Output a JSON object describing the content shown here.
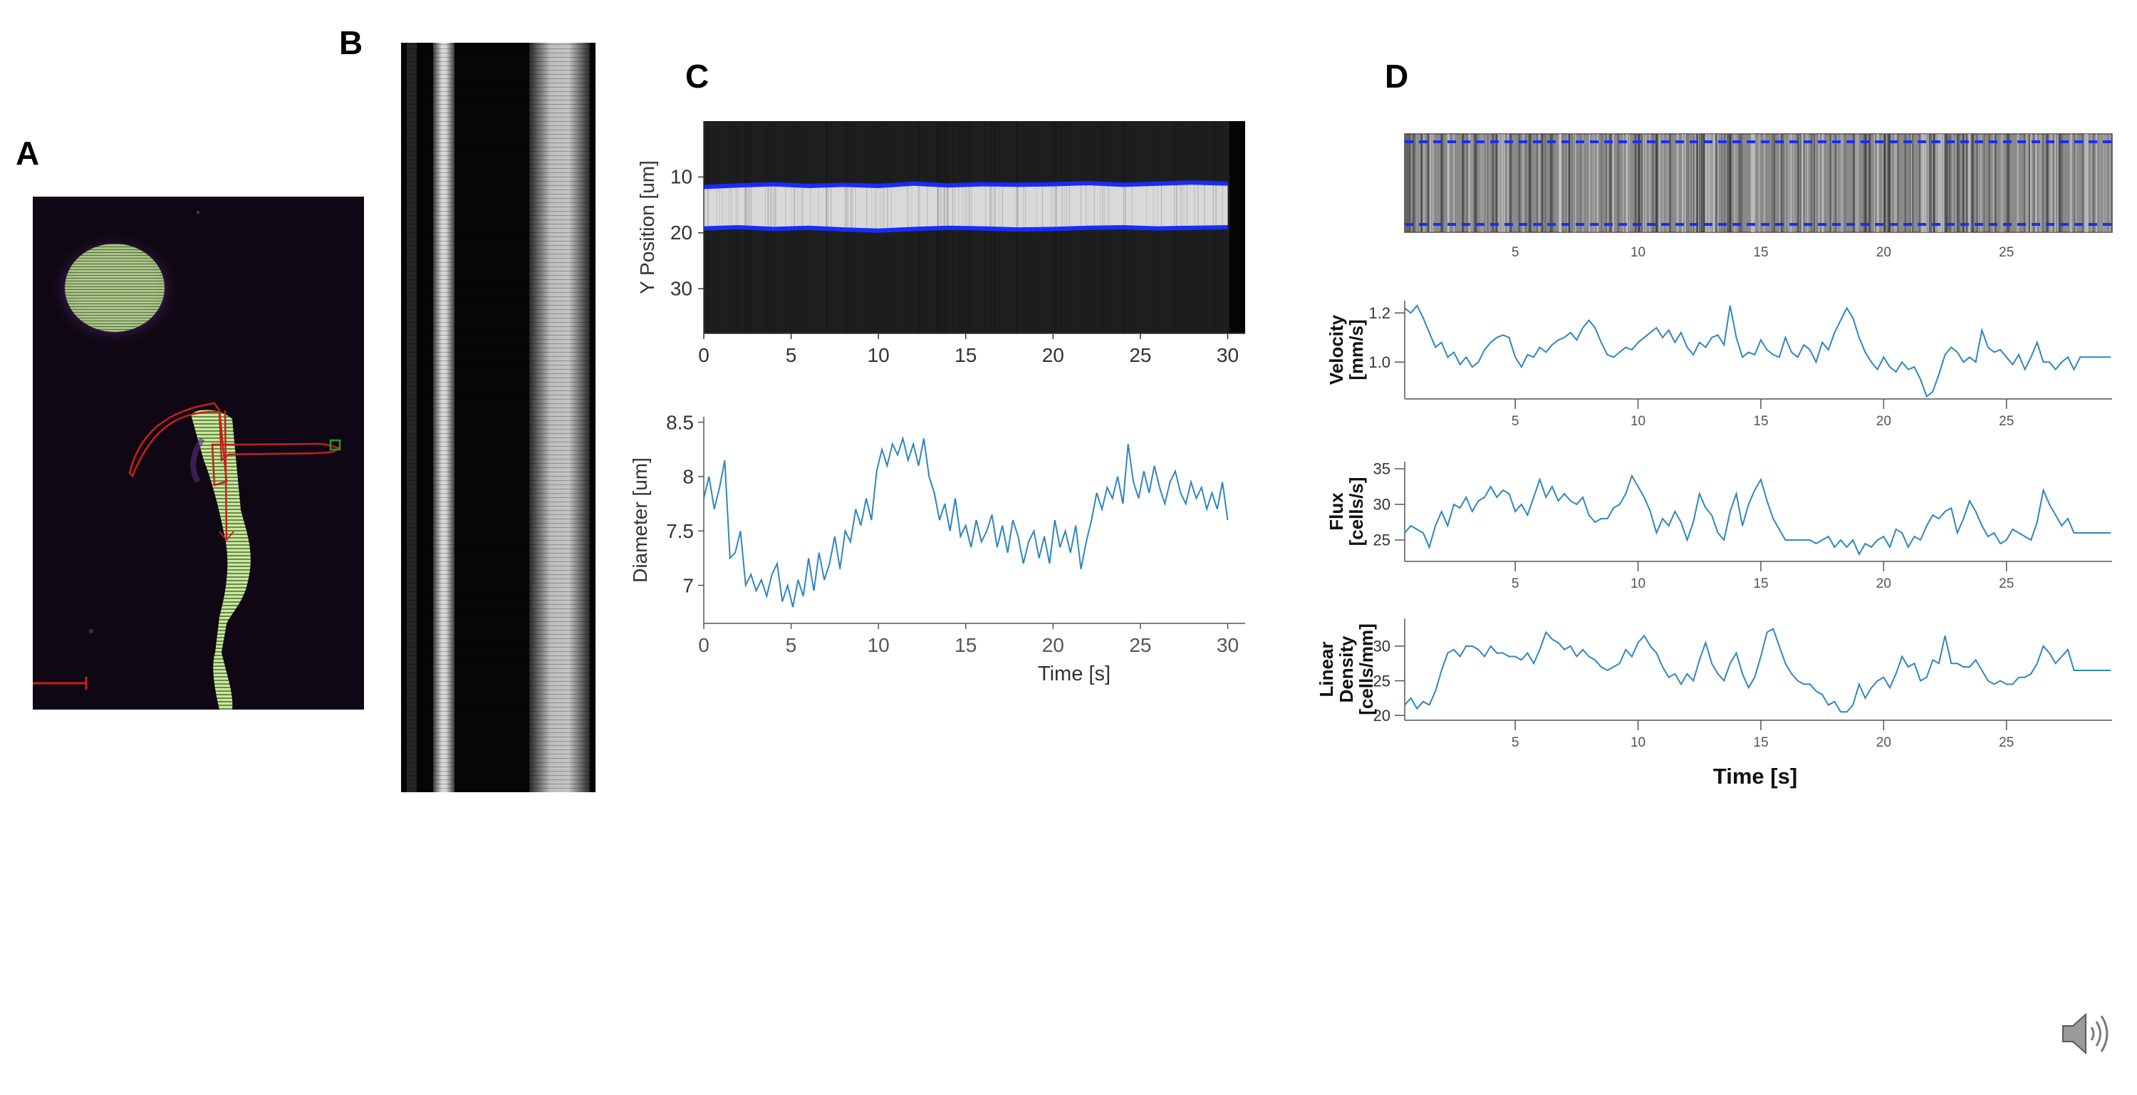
{
  "panels": {
    "a": "A",
    "b": "B",
    "c": "C",
    "d": "D"
  },
  "colors": {
    "trace": "#2f86bf",
    "edge": "#1a2bff",
    "roi": "#c81e1e",
    "marker": "#19a319",
    "cell": "#d2f0a8"
  },
  "speaker_icon": "speaker-volume-icon",
  "chart_data": [
    {
      "id": "c-kymograph",
      "type": "heatmap",
      "title": "",
      "ylabel": "Y Position [um]",
      "xlabel": "",
      "xlim": [
        0,
        31
      ],
      "ylim": [
        0,
        38
      ],
      "x_ticks": [
        0,
        5,
        10,
        15,
        20,
        25,
        30
      ],
      "y_ticks": [
        10,
        20,
        30
      ],
      "upper_edge": [
        [
          0,
          11.8
        ],
        [
          2,
          11.5
        ],
        [
          4,
          11.3
        ],
        [
          6,
          11.6
        ],
        [
          8,
          11.4
        ],
        [
          10,
          11.6
        ],
        [
          12,
          11.2
        ],
        [
          14,
          11.5
        ],
        [
          16,
          11.3
        ],
        [
          18,
          11.4
        ],
        [
          20,
          11.3
        ],
        [
          22,
          11.1
        ],
        [
          24,
          11.4
        ],
        [
          26,
          11.2
        ],
        [
          28,
          11.0
        ],
        [
          30,
          11.2
        ]
      ],
      "lower_edge": [
        [
          0,
          19.2
        ],
        [
          2,
          19.0
        ],
        [
          4,
          19.3
        ],
        [
          6,
          19.1
        ],
        [
          8,
          19.4
        ],
        [
          10,
          19.6
        ],
        [
          12,
          19.3
        ],
        [
          14,
          19.1
        ],
        [
          16,
          19.2
        ],
        [
          18,
          19.4
        ],
        [
          20,
          19.3
        ],
        [
          22,
          19.1
        ],
        [
          24,
          19.0
        ],
        [
          26,
          19.2
        ],
        [
          28,
          19.1
        ],
        [
          30,
          19.0
        ]
      ]
    },
    {
      "id": "c-diameter",
      "type": "line",
      "title": "",
      "xlabel": "Time [s]",
      "ylabel": "Diameter [um]",
      "xlim": [
        0,
        31
      ],
      "ylim": [
        6.65,
        8.55
      ],
      "x_ticks": [
        0,
        5,
        10,
        15,
        20,
        25,
        30
      ],
      "y_ticks": [
        7,
        7.5,
        8,
        8.5
      ],
      "x": [
        0,
        0.3,
        0.6,
        0.9,
        1.2,
        1.5,
        1.8,
        2.1,
        2.4,
        2.7,
        3.0,
        3.3,
        3.6,
        3.9,
        4.2,
        4.5,
        4.8,
        5.1,
        5.4,
        5.7,
        6.0,
        6.3,
        6.6,
        6.9,
        7.2,
        7.5,
        7.8,
        8.1,
        8.4,
        8.7,
        9.0,
        9.3,
        9.6,
        9.9,
        10.2,
        10.5,
        10.8,
        11.1,
        11.4,
        11.7,
        12.0,
        12.3,
        12.6,
        12.9,
        13.2,
        13.5,
        13.8,
        14.1,
        14.4,
        14.7,
        15.0,
        15.3,
        15.6,
        15.9,
        16.2,
        16.5,
        16.8,
        17.1,
        17.4,
        17.7,
        18.0,
        18.3,
        18.6,
        18.9,
        19.2,
        19.5,
        19.8,
        20.1,
        20.4,
        20.7,
        21.0,
        21.3,
        21.6,
        21.9,
        22.2,
        22.5,
        22.8,
        23.1,
        23.4,
        23.7,
        24.0,
        24.3,
        24.6,
        24.9,
        25.2,
        25.5,
        25.8,
        26.1,
        26.4,
        26.7,
        27.0,
        27.3,
        27.6,
        27.9,
        28.2,
        28.5,
        28.8,
        29.1,
        29.4,
        29.7,
        30.0
      ],
      "values": [
        7.8,
        8.0,
        7.7,
        7.9,
        8.15,
        7.25,
        7.3,
        7.5,
        7.0,
        7.1,
        6.95,
        7.05,
        6.9,
        7.1,
        7.2,
        6.85,
        7.0,
        6.8,
        7.05,
        6.9,
        7.25,
        6.95,
        7.3,
        7.05,
        7.2,
        7.45,
        7.15,
        7.5,
        7.4,
        7.7,
        7.55,
        7.8,
        7.6,
        8.05,
        8.25,
        8.1,
        8.3,
        8.2,
        8.35,
        8.15,
        8.3,
        8.1,
        8.35,
        8.0,
        7.85,
        7.6,
        7.75,
        7.5,
        7.8,
        7.45,
        7.55,
        7.35,
        7.6,
        7.4,
        7.5,
        7.65,
        7.35,
        7.55,
        7.3,
        7.6,
        7.45,
        7.2,
        7.4,
        7.5,
        7.25,
        7.45,
        7.2,
        7.6,
        7.35,
        7.5,
        7.3,
        7.55,
        7.15,
        7.4,
        7.6,
        7.85,
        7.7,
        7.9,
        7.8,
        8.0,
        7.75,
        8.3,
        7.95,
        7.8,
        8.05,
        7.85,
        8.1,
        7.9,
        7.75,
        7.95,
        8.05,
        7.85,
        7.75,
        7.95,
        7.8,
        7.9,
        7.7,
        7.85,
        7.7,
        7.95,
        7.6
      ]
    },
    {
      "id": "d-linescan",
      "type": "heatmap",
      "title": "",
      "xlabel": "",
      "ylabel": "",
      "xlim": [
        0.5,
        29.3
      ],
      "ylim": [
        0,
        1
      ],
      "x_ticks": [
        5,
        10,
        15,
        20,
        25
      ],
      "dashed_levels": [
        0.08,
        0.92
      ]
    },
    {
      "id": "d-velocity",
      "type": "line",
      "title": "",
      "xlabel": "",
      "ylabel": "Velocity [mm/s]",
      "xlim": [
        0.5,
        29.3
      ],
      "ylim": [
        0.85,
        1.25
      ],
      "x_ticks": [
        5,
        10,
        15,
        20,
        25
      ],
      "y_ticks": [
        1.0,
        1.2
      ],
      "y_tick_labels": [
        "1.0",
        "1.2"
      ],
      "x": [
        0.5,
        0.75,
        1.0,
        1.25,
        1.5,
        1.75,
        2.0,
        2.25,
        2.5,
        2.75,
        3.0,
        3.25,
        3.5,
        3.75,
        4.0,
        4.25,
        4.5,
        4.75,
        5.0,
        5.25,
        5.5,
        5.75,
        6.0,
        6.25,
        6.5,
        6.75,
        7.0,
        7.25,
        7.5,
        7.75,
        8.0,
        8.25,
        8.5,
        8.75,
        9.0,
        9.25,
        9.5,
        9.75,
        10.0,
        10.25,
        10.5,
        10.75,
        11.0,
        11.25,
        11.5,
        11.75,
        12.0,
        12.25,
        12.5,
        12.75,
        13.0,
        13.25,
        13.5,
        13.75,
        14.0,
        14.25,
        14.5,
        14.75,
        15.0,
        15.25,
        15.5,
        15.75,
        16.0,
        16.25,
        16.5,
        16.75,
        17.0,
        17.25,
        17.5,
        17.75,
        18.0,
        18.25,
        18.5,
        18.75,
        19.0,
        19.25,
        19.5,
        19.75,
        20.0,
        20.25,
        20.5,
        20.75,
        21.0,
        21.25,
        21.5,
        21.75,
        22.0,
        22.25,
        22.5,
        22.75,
        23.0,
        23.25,
        23.5,
        23.75,
        24.0,
        24.25,
        24.5,
        24.75,
        25.0,
        25.25,
        25.5,
        25.75,
        26.0,
        26.25,
        26.5,
        26.75,
        27.0,
        27.25,
        27.5,
        27.75,
        28.0,
        28.25,
        28.5,
        28.75,
        29.0,
        29.25
      ],
      "values": [
        1.22,
        1.2,
        1.23,
        1.18,
        1.12,
        1.06,
        1.08,
        1.02,
        1.04,
        0.99,
        1.02,
        0.98,
        1.0,
        1.05,
        1.08,
        1.1,
        1.11,
        1.1,
        1.02,
        0.98,
        1.03,
        1.02,
        1.06,
        1.04,
        1.07,
        1.09,
        1.1,
        1.12,
        1.09,
        1.14,
        1.17,
        1.14,
        1.08,
        1.03,
        1.02,
        1.04,
        1.06,
        1.05,
        1.08,
        1.1,
        1.12,
        1.14,
        1.1,
        1.13,
        1.08,
        1.12,
        1.06,
        1.03,
        1.08,
        1.06,
        1.1,
        1.11,
        1.07,
        1.23,
        1.1,
        1.02,
        1.04,
        1.03,
        1.09,
        1.05,
        1.03,
        1.02,
        1.1,
        1.04,
        1.02,
        1.07,
        1.05,
        1.0,
        1.08,
        1.05,
        1.12,
        1.17,
        1.22,
        1.18,
        1.1,
        1.04,
        1.0,
        0.97,
        1.02,
        0.98,
        0.96,
        1.0,
        0.97,
        0.98,
        0.93,
        0.86,
        0.88,
        0.95,
        1.03,
        1.06,
        1.04,
        1.0,
        1.02,
        1.0,
        1.13,
        1.06,
        1.04,
        1.05,
        1.02,
        0.99,
        1.03,
        0.97,
        1.02,
        1.08,
        1.0,
        1.0,
        0.97,
        1.0,
        1.02,
        0.97,
        1.02,
        1.02,
        1.02,
        1.02,
        1.02,
        1.02
      ]
    },
    {
      "id": "d-flux",
      "type": "line",
      "title": "",
      "xlabel": "",
      "ylabel": "Flux [cells/s]",
      "xlim": [
        0.5,
        29.3
      ],
      "ylim": [
        22,
        36
      ],
      "x_ticks": [
        5,
        10,
        15,
        20,
        25
      ],
      "y_ticks": [
        25,
        30,
        35
      ],
      "x": [
        0.5,
        0.75,
        1.0,
        1.25,
        1.5,
        1.75,
        2.0,
        2.25,
        2.5,
        2.75,
        3.0,
        3.25,
        3.5,
        3.75,
        4.0,
        4.25,
        4.5,
        4.75,
        5.0,
        5.25,
        5.5,
        5.75,
        6.0,
        6.25,
        6.5,
        6.75,
        7.0,
        7.25,
        7.5,
        7.75,
        8.0,
        8.25,
        8.5,
        8.75,
        9.0,
        9.25,
        9.5,
        9.75,
        10.0,
        10.25,
        10.5,
        10.75,
        11.0,
        11.25,
        11.5,
        11.75,
        12.0,
        12.25,
        12.5,
        12.75,
        13.0,
        13.25,
        13.5,
        13.75,
        14.0,
        14.25,
        14.5,
        14.75,
        15.0,
        15.25,
        15.5,
        15.75,
        16.0,
        16.25,
        16.5,
        16.75,
        17.0,
        17.25,
        17.5,
        17.75,
        18.0,
        18.25,
        18.5,
        18.75,
        19.0,
        19.25,
        19.5,
        19.75,
        20.0,
        20.25,
        20.5,
        20.75,
        21.0,
        21.25,
        21.5,
        21.75,
        22.0,
        22.25,
        22.5,
        22.75,
        23.0,
        23.25,
        23.5,
        23.75,
        24.0,
        24.25,
        24.5,
        24.75,
        25.0,
        25.25,
        25.5,
        25.75,
        26.0,
        26.25,
        26.5,
        26.75,
        27.0,
        27.25,
        27.5,
        27.75,
        28.0,
        28.25,
        28.5,
        28.75,
        29.0,
        29.25
      ],
      "values": [
        26,
        27,
        26.5,
        26,
        24,
        27,
        29,
        27,
        30,
        29.5,
        31,
        29,
        30.5,
        31,
        32.5,
        31,
        32,
        31.5,
        29,
        30,
        28.5,
        31,
        33.5,
        31,
        32.5,
        30.5,
        31.5,
        30.5,
        30,
        31,
        28.5,
        27.5,
        28,
        28,
        29.5,
        30,
        31.5,
        34,
        32.5,
        31,
        29,
        26,
        28,
        27,
        29,
        27.5,
        25,
        27.5,
        31.5,
        29.5,
        28.5,
        26,
        25,
        29,
        31.5,
        27,
        30,
        32,
        33.5,
        30.5,
        28,
        26.5,
        25,
        25,
        25,
        25,
        25,
        24.5,
        25,
        25.5,
        24,
        25,
        24,
        25,
        23,
        24.5,
        24,
        25,
        25.5,
        24,
        26.5,
        26,
        24,
        25.5,
        25,
        27,
        28.5,
        28,
        29,
        29.5,
        26,
        28,
        30.5,
        29,
        27,
        25.5,
        26,
        24.5,
        25,
        26.5,
        26,
        25.5,
        25,
        27.5,
        32,
        30,
        28.5,
        27,
        28,
        26,
        26,
        26,
        26,
        26,
        26,
        26
      ]
    },
    {
      "id": "d-density",
      "type": "line",
      "title": "",
      "xlabel": "Time [s]",
      "ylabel": "Linear Density [cells/mm]",
      "xlim": [
        0.5,
        29.3
      ],
      "ylim": [
        19.3,
        34
      ],
      "x_ticks": [
        5,
        10,
        15,
        20,
        25
      ],
      "y_ticks": [
        20,
        25,
        30
      ],
      "x": [
        0.5,
        0.75,
        1.0,
        1.25,
        1.5,
        1.75,
        2.0,
        2.25,
        2.5,
        2.75,
        3.0,
        3.25,
        3.5,
        3.75,
        4.0,
        4.25,
        4.5,
        4.75,
        5.0,
        5.25,
        5.5,
        5.75,
        6.0,
        6.25,
        6.5,
        6.75,
        7.0,
        7.25,
        7.5,
        7.75,
        8.0,
        8.25,
        8.5,
        8.75,
        9.0,
        9.25,
        9.5,
        9.75,
        10.0,
        10.25,
        10.5,
        10.75,
        11.0,
        11.25,
        11.5,
        11.75,
        12.0,
        12.25,
        12.5,
        12.75,
        13.0,
        13.25,
        13.5,
        13.75,
        14.0,
        14.25,
        14.5,
        14.75,
        15.0,
        15.25,
        15.5,
        15.75,
        16.0,
        16.25,
        16.5,
        16.75,
        17.0,
        17.25,
        17.5,
        17.75,
        18.0,
        18.25,
        18.5,
        18.75,
        19.0,
        19.25,
        19.5,
        19.75,
        20.0,
        20.25,
        20.5,
        20.75,
        21.0,
        21.25,
        21.5,
        21.75,
        22.0,
        22.25,
        22.5,
        22.75,
        23.0,
        23.25,
        23.5,
        23.75,
        24.0,
        24.25,
        24.5,
        24.75,
        25.0,
        25.25,
        25.5,
        25.75,
        26.0,
        26.25,
        26.5,
        26.75,
        27.0,
        27.25,
        27.5,
        27.75,
        28.0,
        28.25,
        28.5,
        28.75,
        29.0,
        29.25
      ],
      "values": [
        21.5,
        22.5,
        21,
        22,
        21.5,
        23.5,
        26.5,
        29,
        29.5,
        28.5,
        30,
        30,
        29.5,
        28.5,
        30,
        29,
        29,
        28.5,
        28.5,
        28,
        29,
        27.5,
        29.5,
        32,
        31,
        30.5,
        29.5,
        30,
        28.5,
        29.5,
        28.5,
        28,
        27,
        26.5,
        27,
        27.5,
        29.5,
        28.5,
        30.5,
        31.5,
        30,
        29,
        27,
        25.5,
        26,
        24.5,
        26,
        25,
        28,
        30.5,
        27.5,
        26,
        25,
        27.5,
        29,
        26,
        24,
        25.5,
        28.5,
        32,
        32.5,
        30,
        27.5,
        26,
        25,
        24.5,
        24.5,
        23.5,
        23,
        21.5,
        22,
        20.5,
        20.5,
        21.5,
        24.5,
        22.5,
        24,
        25,
        25.5,
        24,
        26,
        28.5,
        27,
        27.5,
        25,
        25.5,
        28,
        27.5,
        31.5,
        27.5,
        27.5,
        27,
        27,
        28,
        26.5,
        25,
        24.5,
        25,
        24.5,
        24.5,
        25.5,
        25.5,
        26,
        27.5,
        30,
        29,
        27.5,
        28.5,
        29.5,
        26.5,
        26.5,
        26.5,
        26.5,
        26.5,
        26.5,
        26.5
      ]
    }
  ]
}
